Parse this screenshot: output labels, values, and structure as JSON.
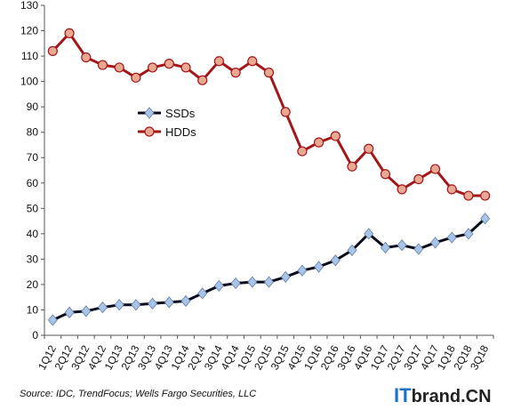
{
  "chart_data": {
    "type": "line",
    "title": "",
    "xlabel": "",
    "ylabel": "",
    "ylim": [
      0,
      130
    ],
    "yticks": [
      0,
      10,
      20,
      30,
      40,
      50,
      60,
      70,
      80,
      90,
      100,
      110,
      120,
      130
    ],
    "grid": false,
    "legend_position": "center-left",
    "categories": [
      "1Q12",
      "2Q12",
      "3Q12",
      "4Q12",
      "1Q13",
      "2Q13",
      "3Q13",
      "4Q13",
      "1Q14",
      "2Q14",
      "3Q14",
      "4Q14",
      "1Q15",
      "2Q15",
      "3Q15",
      "4Q15",
      "1Q16",
      "2Q16",
      "3Q16",
      "4Q16",
      "1Q17",
      "2Q17",
      "3Q17",
      "4Q17",
      "1Q18",
      "2Q18",
      "3Q18"
    ],
    "series": [
      {
        "name": "SSDs",
        "color": "#0b0b1e",
        "marker_color": "#a9c4e6",
        "marker": "diamond",
        "values": [
          6,
          9,
          9.5,
          11,
          12,
          12,
          12.5,
          13,
          13.5,
          16.5,
          19.5,
          20.5,
          21,
          21,
          23,
          25.5,
          27,
          29.5,
          33.5,
          40,
          34.5,
          35.5,
          34,
          36.5,
          38.5,
          40,
          46
        ]
      },
      {
        "name": "HDDs",
        "color": "#a4161a",
        "marker_color": "#e8a892",
        "marker": "circle",
        "values": [
          112,
          119,
          109.5,
          106.5,
          105.5,
          101.5,
          105.5,
          107,
          105.5,
          100.5,
          108,
          103.5,
          108,
          103.5,
          88,
          72.5,
          76,
          78.5,
          66.5,
          73.5,
          63.5,
          57.5,
          61.5,
          65.5,
          57.5,
          55,
          55
        ]
      }
    ]
  },
  "footer": {
    "source": "Source: IDC, TrendFocus; Wells Fargo Securities, LLC",
    "watermark_prefix": "IT",
    "watermark_suffix": "brand.CN"
  }
}
